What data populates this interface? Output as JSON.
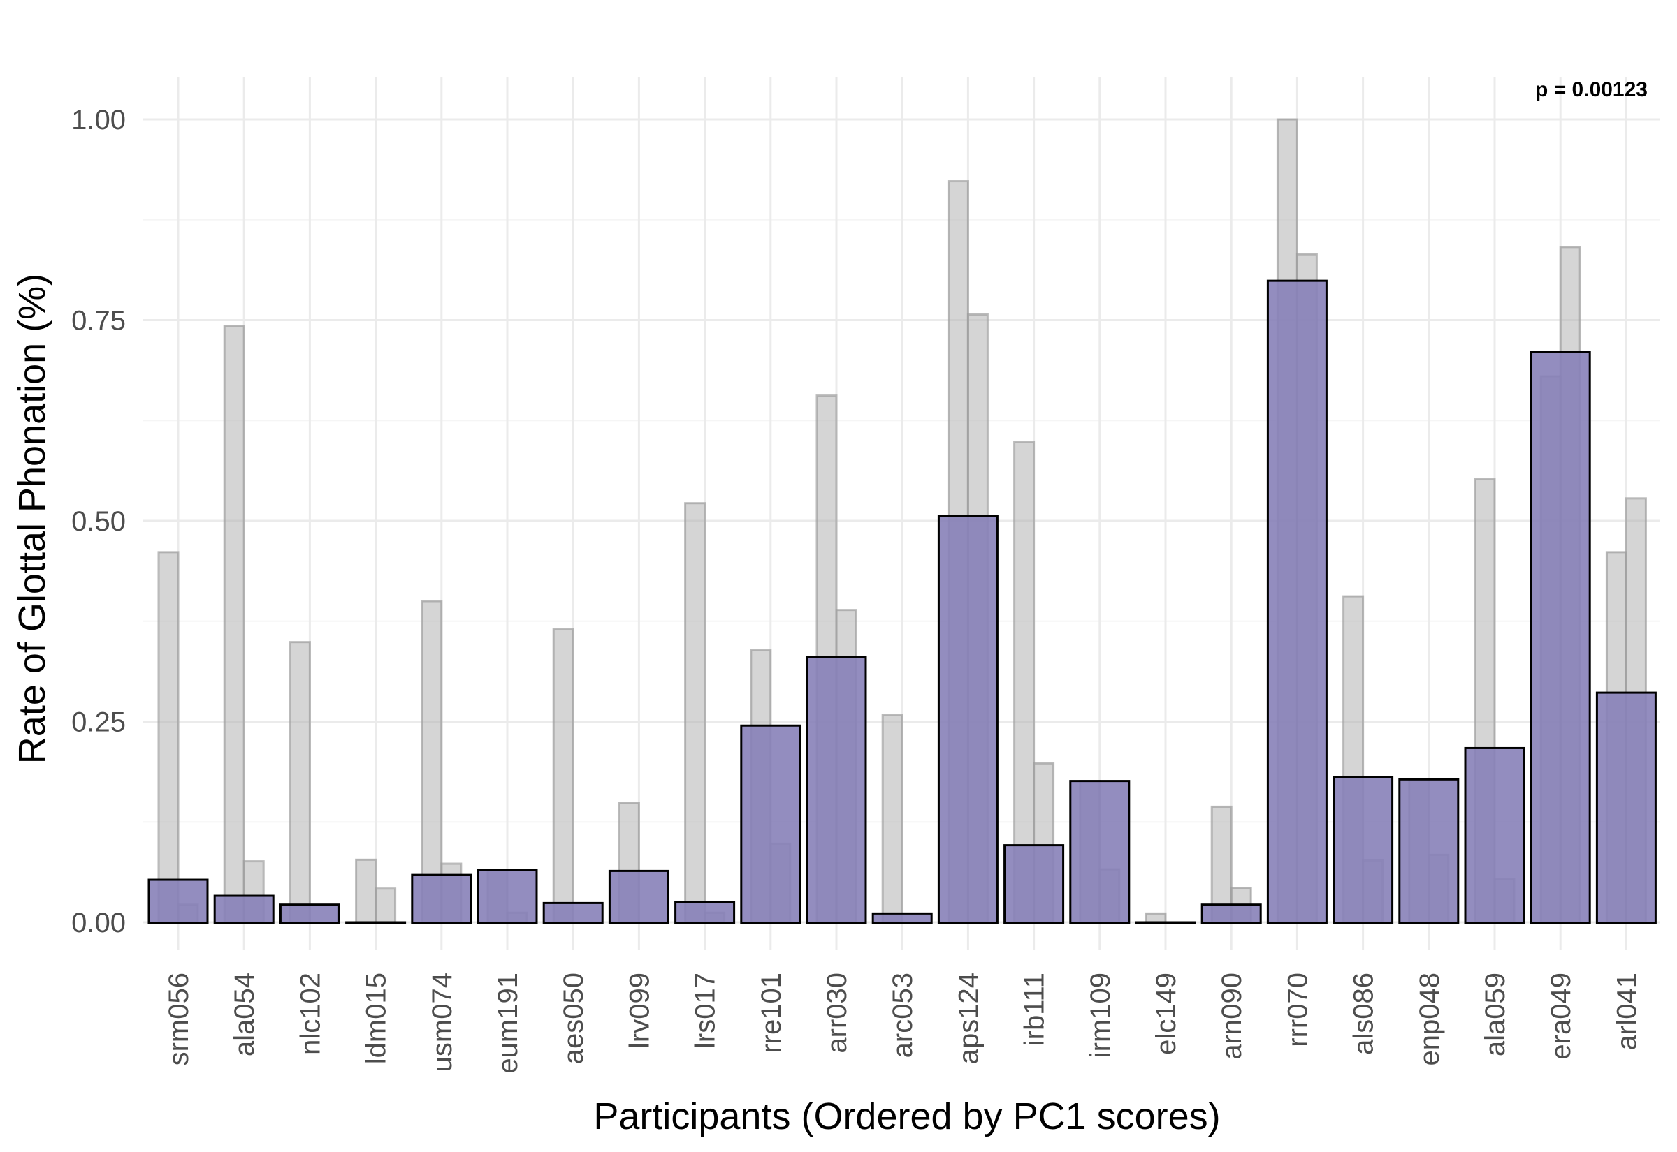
{
  "chart_data": {
    "type": "bar",
    "xlabel": "Participants (Ordered by PC1 scores)",
    "ylabel": "Rate of Glottal Phonation (%)",
    "ylim": [
      -0.03,
      1.05
    ],
    "yticks": [
      "0.00",
      "0.25",
      "0.50",
      "0.75",
      "1.00"
    ],
    "yticks_values": [
      0,
      0.25,
      0.5,
      0.75,
      1.0
    ],
    "grid": true,
    "annotation": "p = 0.00123",
    "categories": [
      "srm056",
      "ala054",
      "nlc102",
      "ldm015",
      "usm074",
      "eum191",
      "aes050",
      "lrv099",
      "lrs017",
      "rre101",
      "arr030",
      "arc053",
      "aps124",
      "irb111",
      "irm109",
      "elc149",
      "arn090",
      "rrr070",
      "als086",
      "enp048",
      "ala059",
      "era049",
      "arl041"
    ],
    "series": [
      {
        "values": [
          0.053,
          0.033,
          0.022,
          0.0,
          0.059,
          0.065,
          0.024,
          0.064,
          0.025,
          0.245,
          0.33,
          0.011,
          0.506,
          0.096,
          0.176,
          0.0,
          0.022,
          0.799,
          0.181,
          0.178,
          0.217,
          0.71,
          0.286
        ]
      },
      {
        "values": [
          0.461,
          0.743,
          0.349,
          0.078,
          0.4,
          0.065,
          0.365,
          0.149,
          0.522,
          0.339,
          0.656,
          0.258,
          0.923,
          0.598,
          0.176,
          0.011,
          0.144,
          1.0,
          0.406,
          0.178,
          0.552,
          0.68,
          0.461
        ]
      },
      {
        "values": [
          0.022,
          0.076,
          0.0,
          0.042,
          0.073,
          0.012,
          0.0,
          0.0,
          0.012,
          0.098,
          0.389,
          0.0,
          0.757,
          0.198,
          0.066,
          0.0,
          0.043,
          0.832,
          0.077,
          0.084,
          0.054,
          0.841,
          0.528
        ]
      }
    ],
    "colors": {
      "main_fill": "#8781b8",
      "main_stroke": "#000000",
      "bg_fill": "#b3b3b3",
      "bg_stroke": "#9e9e9e",
      "grid_major": "#ebebeb",
      "grid_minor": "#f5f5f5"
    }
  }
}
